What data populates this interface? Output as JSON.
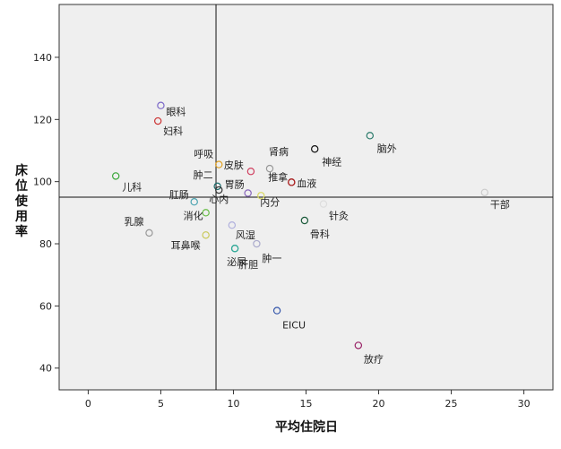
{
  "chart_data": {
    "type": "scatter",
    "title": "",
    "xlabel": "平均住院日",
    "ylabel": "床位使用率",
    "xlim": [
      -2,
      32
    ],
    "ylim": [
      33,
      157
    ],
    "x_ticks": [
      0,
      5,
      10,
      15,
      20,
      25,
      30
    ],
    "y_ticks": [
      40,
      60,
      80,
      100,
      120,
      140
    ],
    "reference_lines": {
      "x": 8.8,
      "y": 95
    },
    "grid": false,
    "plot_background": "#efefef",
    "points": [
      {
        "label": "眼科",
        "x": 5.0,
        "y": 124.5,
        "color": "#7b68c8"
      },
      {
        "label": "妇科",
        "x": 4.8,
        "y": 119.5,
        "color": "#cc3333"
      },
      {
        "label": "儿科",
        "x": 1.9,
        "y": 101.8,
        "color": "#3aa63a"
      },
      {
        "label": "乳腺",
        "x": 4.2,
        "y": 83.5,
        "color": "#999999"
      },
      {
        "label": "肛肠",
        "x": 7.3,
        "y": 93.5,
        "color": "#4aa3b0"
      },
      {
        "label": "消化",
        "x": 8.1,
        "y": 90.0,
        "color": "#66bb44"
      },
      {
        "label": "耳鼻喉",
        "x": 8.1,
        "y": 82.8,
        "color": "#c9c958"
      },
      {
        "label": "呼吸",
        "x": 9.0,
        "y": 105.5,
        "color": "#e0a020"
      },
      {
        "label": "皮肤",
        "x": 11.2,
        "y": 103.3,
        "color": "#d04060"
      },
      {
        "label": "肿二",
        "x": 8.9,
        "y": 98.5,
        "color": "#1a6a6a"
      },
      {
        "label": "心内",
        "x": 9.0,
        "y": 97.3,
        "color": "#333333"
      },
      {
        "label": "胃肠",
        "x": 11.0,
        "y": 96.3,
        "color": "#8866bb"
      },
      {
        "label": "风湿",
        "x": 9.9,
        "y": 86.0,
        "color": "#b0b0dd"
      },
      {
        "label": "泌尿",
        "x": 10.1,
        "y": 78.5,
        "color": "#33aa99"
      },
      {
        "label": "肾病",
        "x": 12.5,
        "y": 104.2,
        "color": "#999999"
      },
      {
        "label": "推拿",
        "x": 14.0,
        "y": 99.8,
        "color": "#aa2222"
      },
      {
        "label": "内分",
        "x": 11.9,
        "y": 95.5,
        "color": "#d8d860"
      },
      {
        "label": "神经",
        "x": 15.6,
        "y": 110.5,
        "color": "#111111"
      },
      {
        "label": "脑外",
        "x": 19.4,
        "y": 114.8,
        "color": "#2a7a6a"
      },
      {
        "label": "针灸",
        "x": 16.2,
        "y": 92.8,
        "color": "#dddddd"
      },
      {
        "label": "骨科",
        "x": 14.9,
        "y": 87.5,
        "color": "#1a5a3a"
      },
      {
        "label": "肝胆",
        "x": 10.1,
        "y": 78.5,
        "color": "#33aa99"
      },
      {
        "label": "肿一",
        "x": 11.6,
        "y": 80.0,
        "color": "#aaaacc"
      },
      {
        "label": "EICU",
        "x": 13.0,
        "y": 58.5,
        "color": "#3355aa"
      },
      {
        "label": "放疗",
        "x": 18.6,
        "y": 47.3,
        "color": "#992266"
      },
      {
        "label": "干部",
        "x": 27.3,
        "y": 96.5,
        "color": "#cccccc"
      },
      {
        "label": "血液",
        "x": 14.0,
        "y": 99.8,
        "color": "#aa2222"
      }
    ]
  }
}
